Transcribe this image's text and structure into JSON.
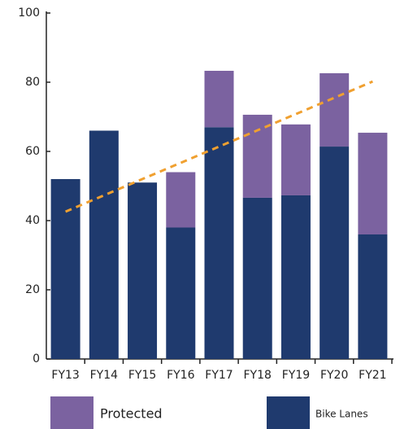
{
  "chart_data": {
    "type": "stacked_bar",
    "categories": [
      "FY13",
      "FY14",
      "FY15",
      "FY16",
      "FY17",
      "FY18",
      "FY19",
      "FY20",
      "FY21"
    ],
    "series": [
      {
        "name": "Bike Lanes",
        "color": "#1f3a6e",
        "values": [
          52,
          66,
          51,
          38,
          67,
          46.6,
          47.3,
          61.4,
          36
        ]
      },
      {
        "name": "Protected",
        "color": "#7b62a0",
        "values": [
          0,
          0,
          0,
          16,
          16.3,
          24,
          20.5,
          21.2,
          29.4
        ]
      }
    ],
    "trend": {
      "values": [
        42.6,
        80.2
      ],
      "color": "#f0a030",
      "dashed": true
    },
    "ylim": [
      0,
      100
    ],
    "yticks": [
      0,
      20,
      40,
      60,
      80,
      100
    ],
    "grid": false
  }
}
